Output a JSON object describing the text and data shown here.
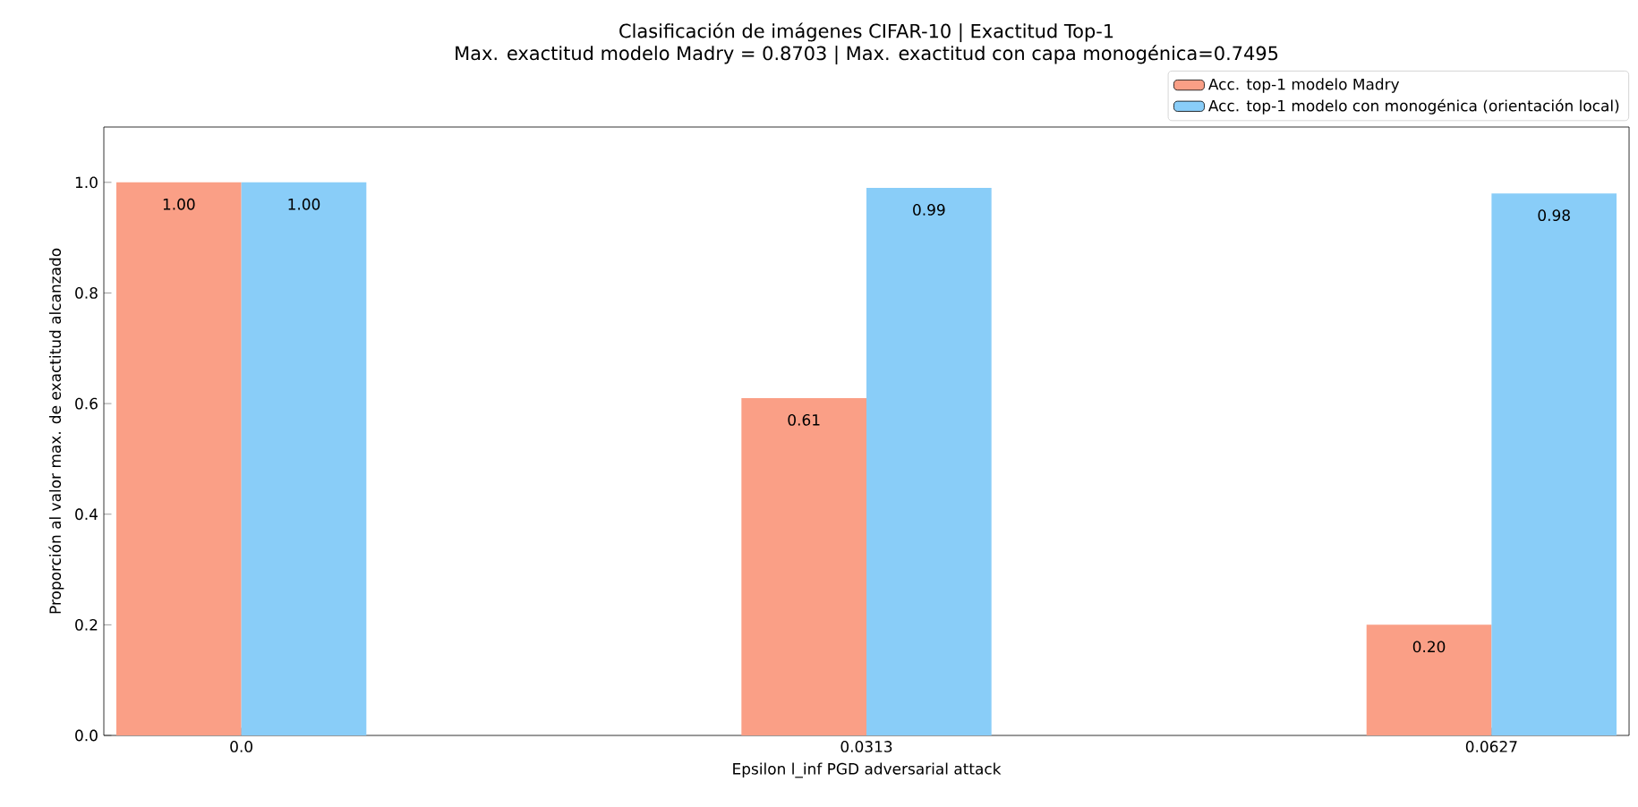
{
  "chart_data": {
    "type": "bar",
    "title": "Clasificación de imágenes CIFAR-10 | Exactitud Top-1",
    "subtitle": "Max. exactitud modelo Madry = 0.8703 | Max. exactitud con capa monogénica=0.7495",
    "xlabel": "Epsilon l_inf PGD adversarial attack",
    "ylabel": "Proporción al valor max. de exactitud alcanzado",
    "categories": [
      "0.0",
      "0.0313",
      "0.0627"
    ],
    "series": [
      {
        "name": "Acc. top-1 modelo Madry",
        "color": "#fa9f86",
        "values": [
          1.0,
          0.61,
          0.2
        ],
        "value_labels": [
          "1.00",
          "0.61",
          "0.20"
        ]
      },
      {
        "name": "Acc. top-1 modelo con monogénica (orientación local)",
        "color": "#89cdf8",
        "values": [
          1.0,
          0.99,
          0.98
        ],
        "value_labels": [
          "1.00",
          "0.99",
          "0.98"
        ]
      }
    ],
    "ylim": [
      0,
      1.1
    ],
    "yticks": [
      {
        "value": 0,
        "label": "0.0"
      },
      {
        "value": 0.2,
        "label": "0.2"
      },
      {
        "value": 0.4,
        "label": "0.4"
      },
      {
        "value": 0.6,
        "label": "0.6"
      },
      {
        "value": 0.8,
        "label": "0.8"
      },
      {
        "value": 1.0,
        "label": "1.0"
      }
    ],
    "legend": "top right"
  }
}
